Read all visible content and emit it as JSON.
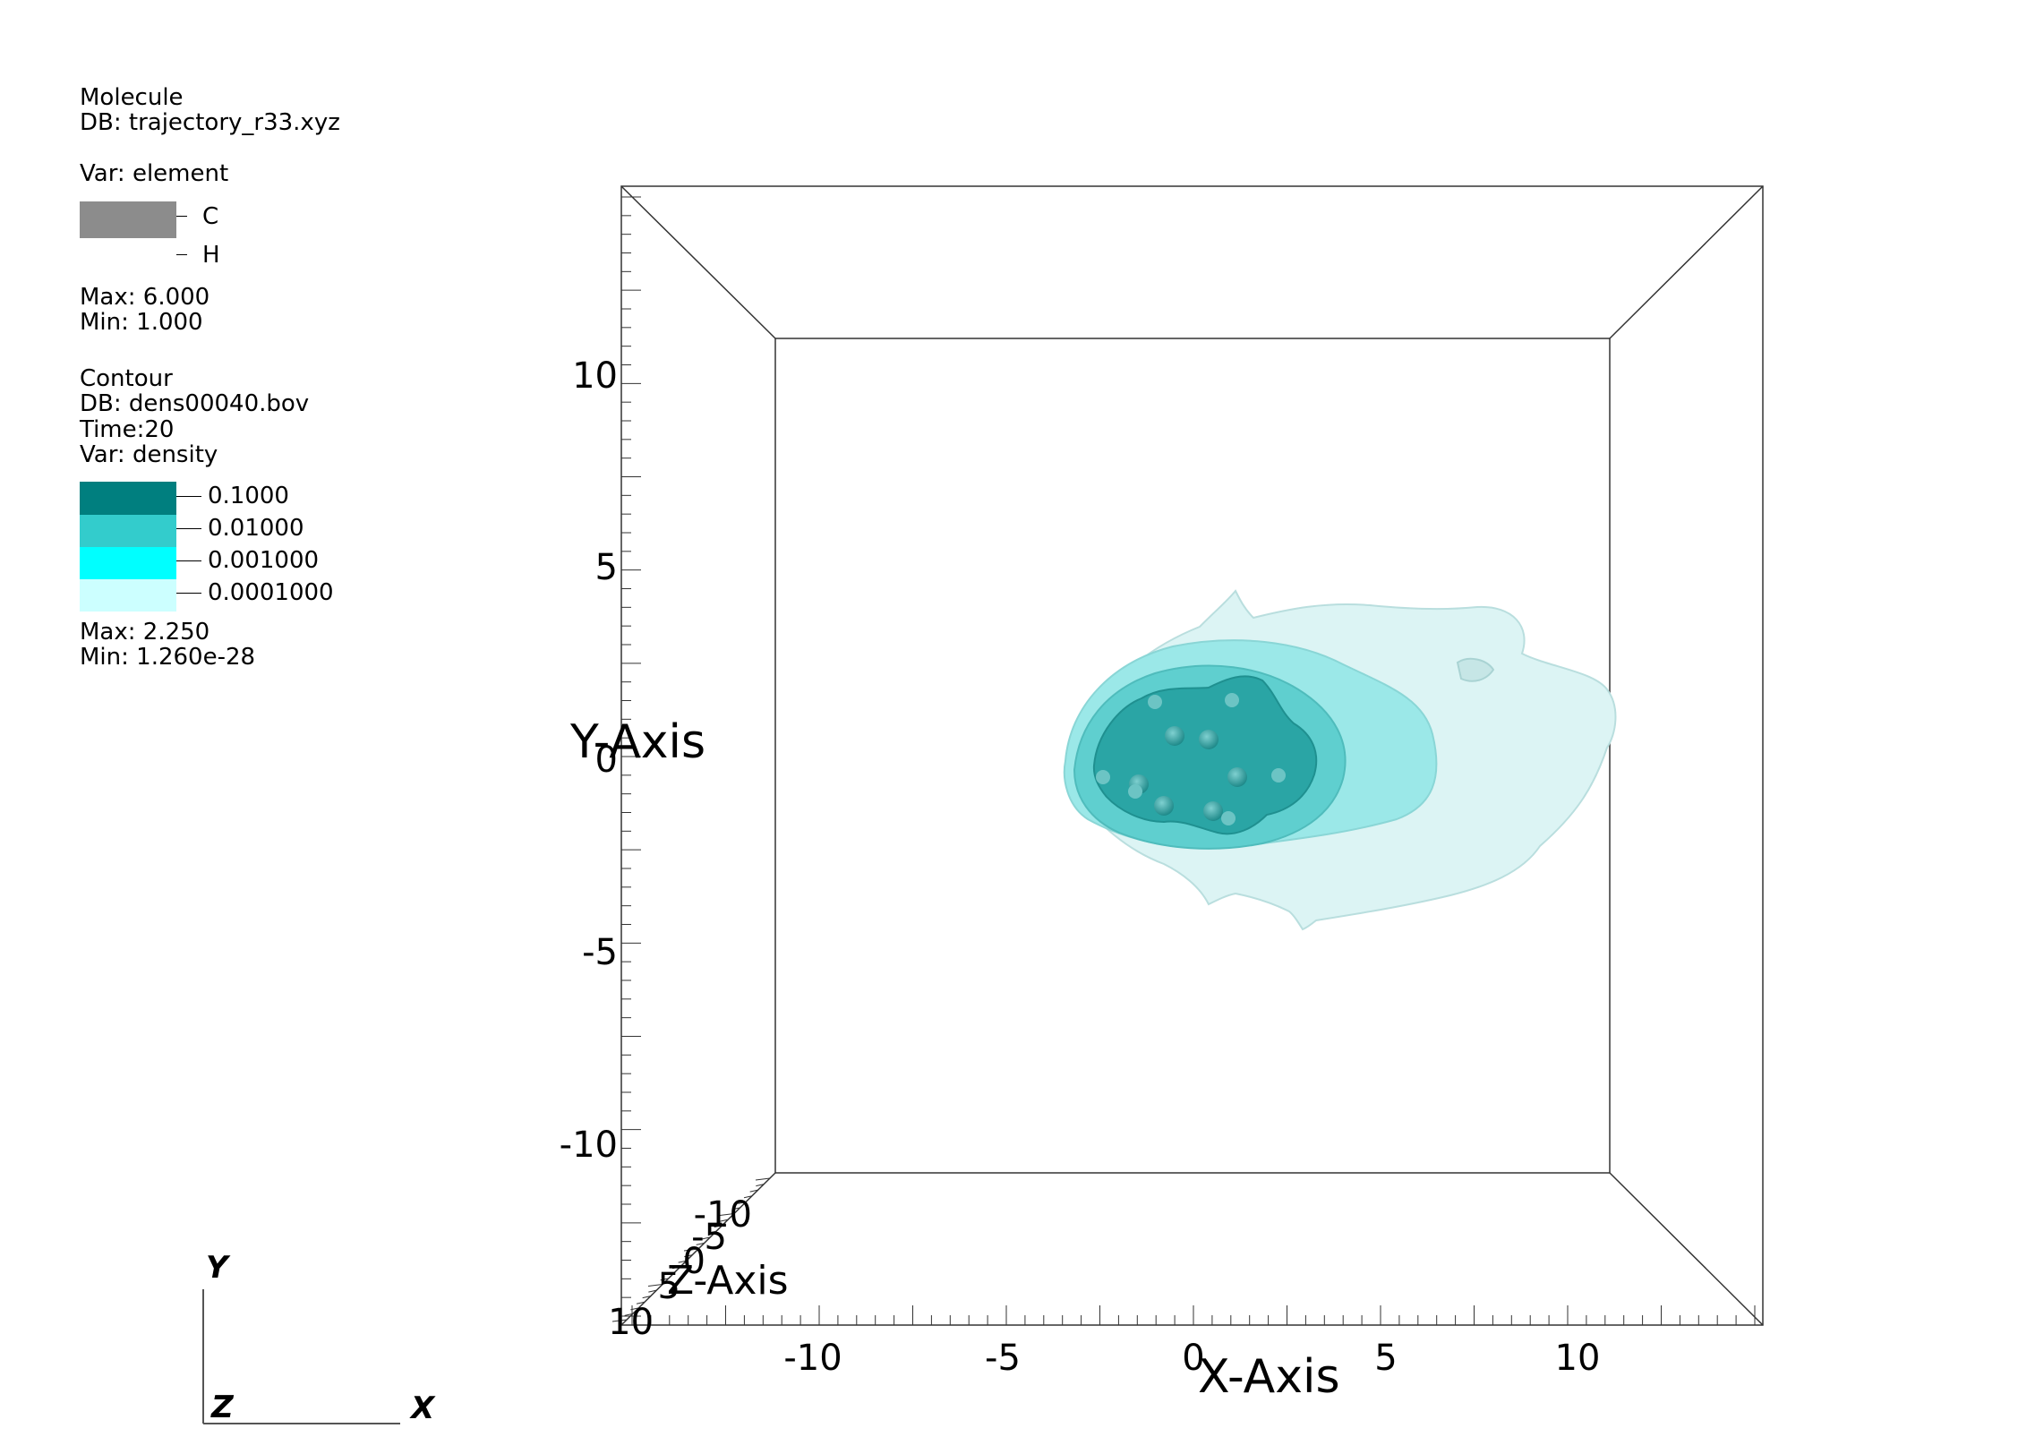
{
  "molecule_legend": {
    "title": "Molecule",
    "db": "DB: trajectory_r33.xyz",
    "var": "Var: element",
    "entries": [
      {
        "label": "C",
        "color": "#8c8c8c"
      },
      {
        "label": "H",
        "color": "#ffffff"
      }
    ],
    "max": "Max:  6.000",
    "min": "Min:  1.000"
  },
  "contour_legend": {
    "title": "Contour",
    "db": "DB: dens00040.bov",
    "time": "Time:20",
    "var": "Var: density",
    "entries": [
      {
        "label": "0.1000",
        "color": "#007f7f"
      },
      {
        "label": "0.01000",
        "color": "#33cccc"
      },
      {
        "label": "0.001000",
        "color": "#00ffff"
      },
      {
        "label": "0.0001000",
        "color": "#ccffff"
      }
    ],
    "max": "Max:  2.250",
    "min": "Min:  1.260e-28"
  },
  "axes": {
    "x_title": "X-Axis",
    "y_title": "Y-Axis",
    "z_title": "Z-Axis",
    "x_ticks": [
      "-10",
      "-5",
      "0",
      "5",
      "10"
    ],
    "y_ticks": [
      "10",
      "5",
      "0",
      "-5",
      "-10"
    ],
    "z_ticks": [
      "-10",
      "-5",
      "0",
      "5",
      "10"
    ]
  },
  "triad": {
    "y": "Y",
    "z": "Z",
    "x": "X"
  }
}
